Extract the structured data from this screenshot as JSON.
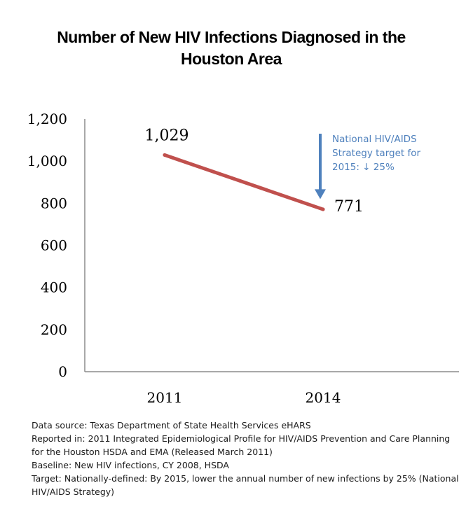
{
  "chart_data": {
    "type": "line",
    "title_lines": [
      "Number of New HIV Infections Diagnosed in the",
      "Houston Area"
    ],
    "xlabel": "",
    "ylabel": "",
    "categories": [
      "2011",
      "2014"
    ],
    "series": [
      {
        "values": [
          1029,
          771
        ],
        "data_labels": [
          "1,029",
          "771"
        ],
        "color": "#c0504d"
      }
    ],
    "ylim": [
      0,
      1200
    ],
    "y_ticks": [
      0,
      200,
      400,
      600,
      800,
      1000,
      1200
    ],
    "y_tick_labels": [
      "0",
      "200",
      "400",
      "600",
      "800",
      "1,000",
      "1,200"
    ],
    "grid": false,
    "legend": "none",
    "annotation": {
      "lines": [
        "National HIV/AIDS",
        "Strategy target for",
        "2015: ↓ 25%"
      ],
      "color": "#4f81bd",
      "arrow_from_value": 1130,
      "arrow_to_value": 820
    }
  },
  "notes": [
    "Data source: Texas Department of State Health Services eHARS",
    "Reported in: 2011 Integrated Epidemiological Profile for HIV/AIDS Prevention and Care Planning for the Houston HSDA and EMA (Released March 2011)",
    "Baseline: New HIV infections, CY 2008, HSDA",
    "Target: Nationally-defined:  By 2015, lower the annual number of new infections by 25% (National HIV/AIDS Strategy)"
  ]
}
